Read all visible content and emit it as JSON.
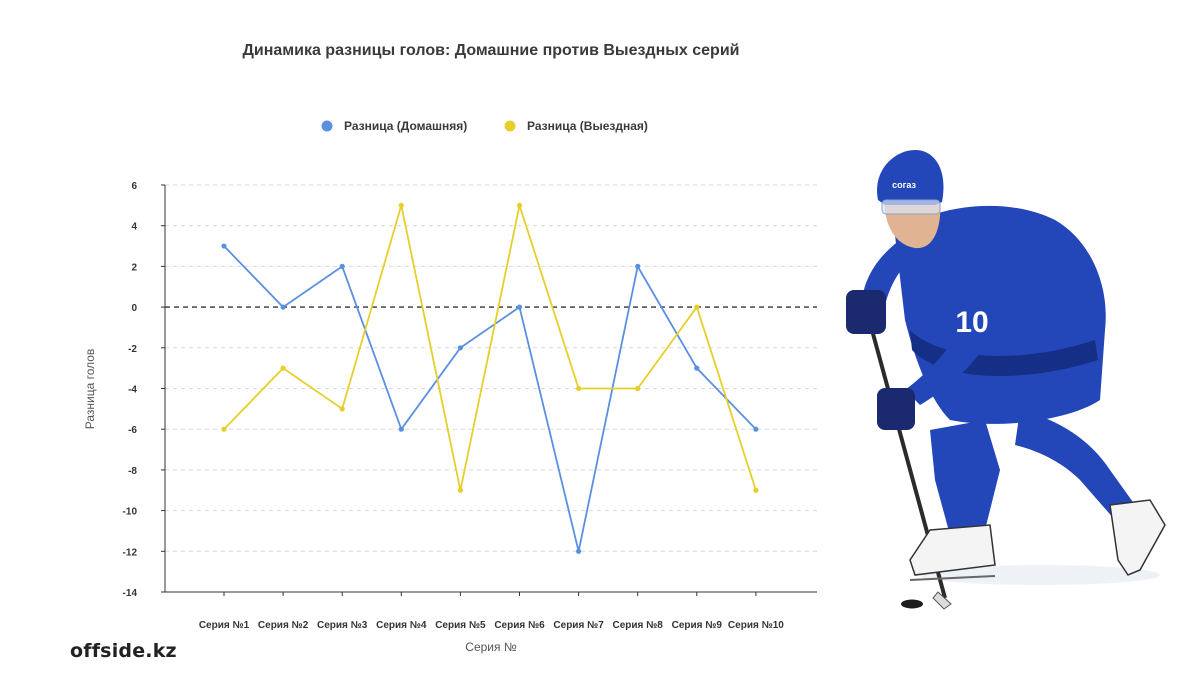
{
  "brand": "offside.kz",
  "chart_data": {
    "type": "line",
    "title": "Динамика разницы голов: Домашние против Выездных серий",
    "xlabel": "Серия №",
    "ylabel": "Разница голов",
    "categories": [
      "Серия №1",
      "Серия №2",
      "Серия №3",
      "Серия №4",
      "Серия №5",
      "Серия №6",
      "Серия №7",
      "Серия №8",
      "Серия №9",
      "Серия №10"
    ],
    "ylim": [
      -14,
      6
    ],
    "yticks": [
      6,
      4,
      2,
      0,
      -2,
      -4,
      -6,
      -8,
      -10,
      -12,
      -14
    ],
    "grid": true,
    "reference_line": 0,
    "legend_position": "top-center",
    "series": [
      {
        "name": "Разница (Домашняя)",
        "color": "#5b8fe0",
        "values": [
          3,
          0,
          2,
          -6,
          -2,
          0,
          -12,
          2,
          -3,
          -6
        ]
      },
      {
        "name": "Разница (Выездная)",
        "color": "#e6cf2a",
        "values": [
          -6,
          -3,
          -5,
          5,
          -9,
          5,
          -4,
          -4,
          0,
          -9
        ]
      }
    ]
  },
  "illustration": {
    "subject": "hockey-player",
    "colors": {
      "jersey": "#2346b8",
      "jersey_dark": "#152f86",
      "skin": "#e0b493"
    },
    "jersey_number": "10",
    "helmet_text": "согаз"
  }
}
